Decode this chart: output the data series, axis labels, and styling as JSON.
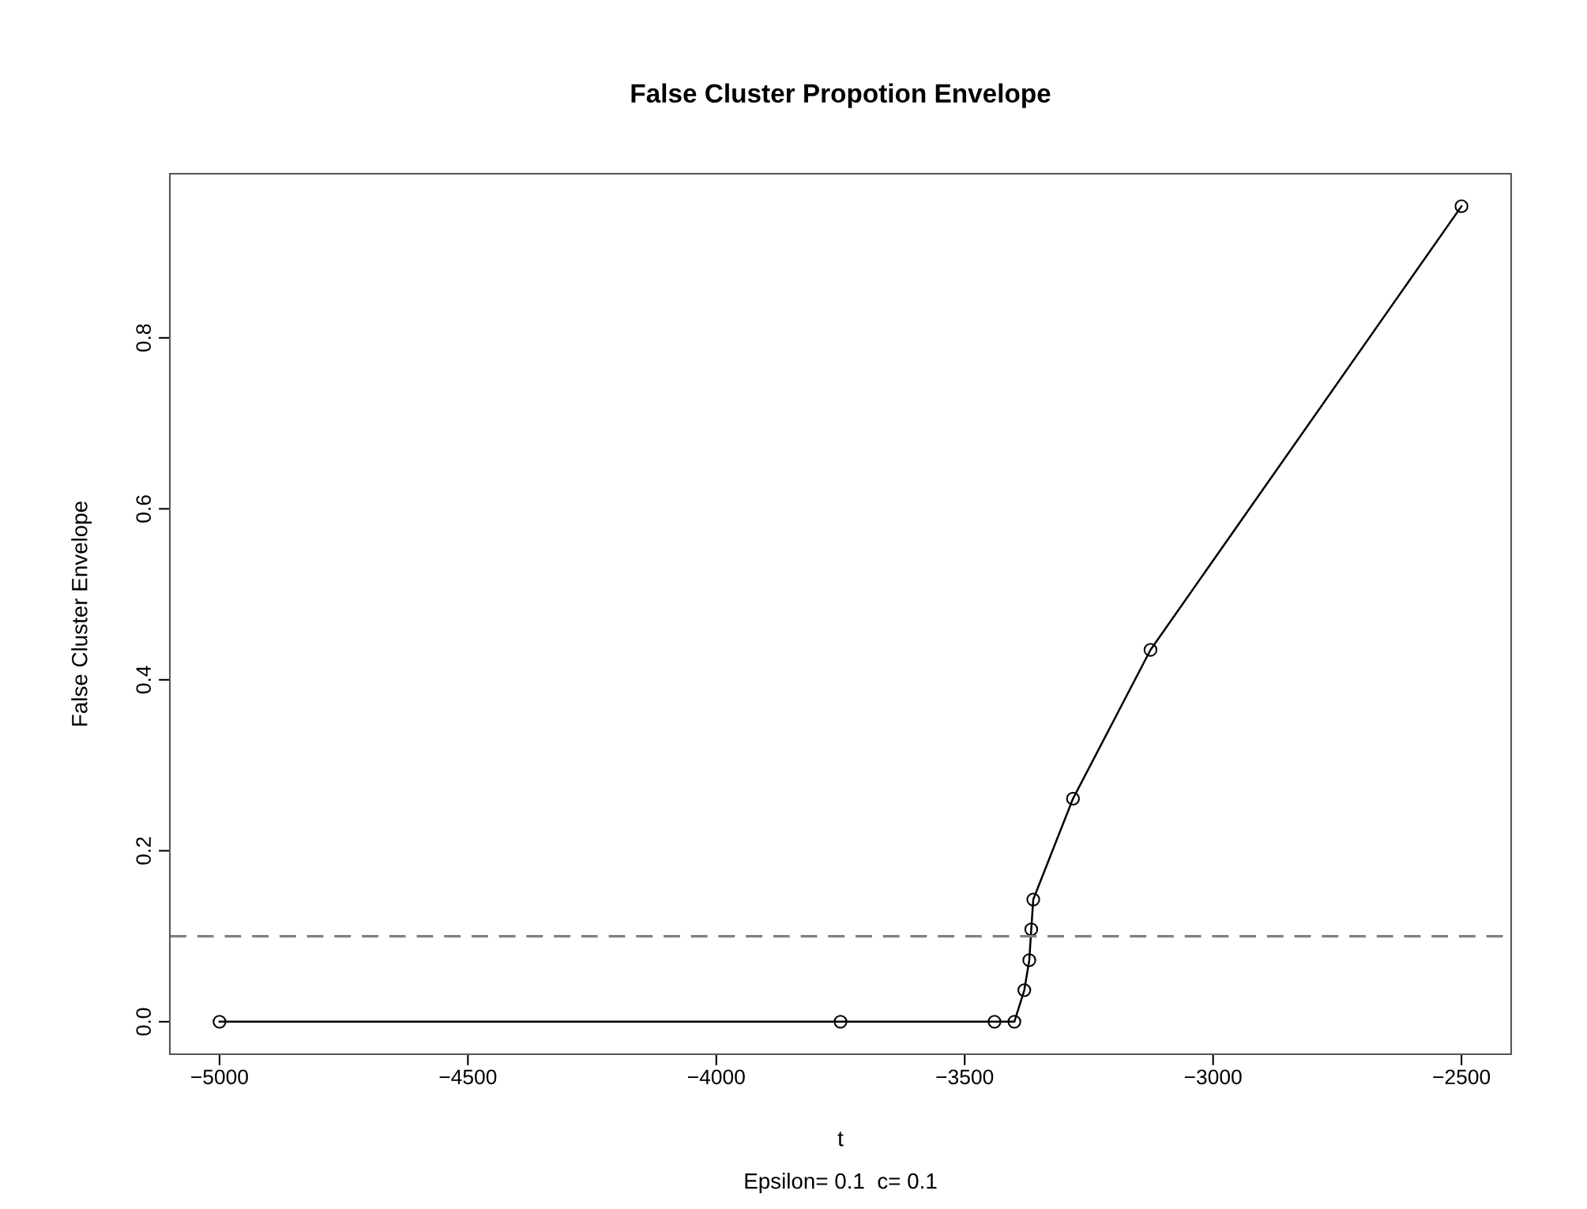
{
  "chart_data": {
    "type": "line",
    "title": "False Cluster Propotion Envelope",
    "xlabel": "t",
    "ylabel": "False Cluster Envelope",
    "annotations": [
      "Epsilon= 0.1  c= 0.1"
    ],
    "x": [
      -5000,
      -3750,
      -3440,
      -3400,
      -3380,
      -3370,
      -3366,
      -3362,
      -3282,
      -3126,
      -2500
    ],
    "series": [
      {
        "color": "#000000",
        "values": [
          0,
          0,
          0,
          0,
          0.037,
          0.072,
          0.108,
          0.143,
          0.261,
          0.435,
          0.954
        ]
      }
    ],
    "marker": "circle",
    "line_style": "solid",
    "xlim": [
      -5100,
      -2400
    ],
    "xticks": [
      -5000,
      -4500,
      -4000,
      -3500,
      -3000,
      -2500
    ],
    "ylim": [
      -0.038,
      0.992
    ],
    "yticks": [
      {
        "value": 0,
        "label": "0.0"
      },
      0.2,
      0.4,
      0.6,
      0.8
    ],
    "ref_lines": [
      {
        "axis": "y",
        "value": 0.1,
        "color": "#808080",
        "line_style": "dashed"
      }
    ],
    "grid": false,
    "legend": false
  }
}
